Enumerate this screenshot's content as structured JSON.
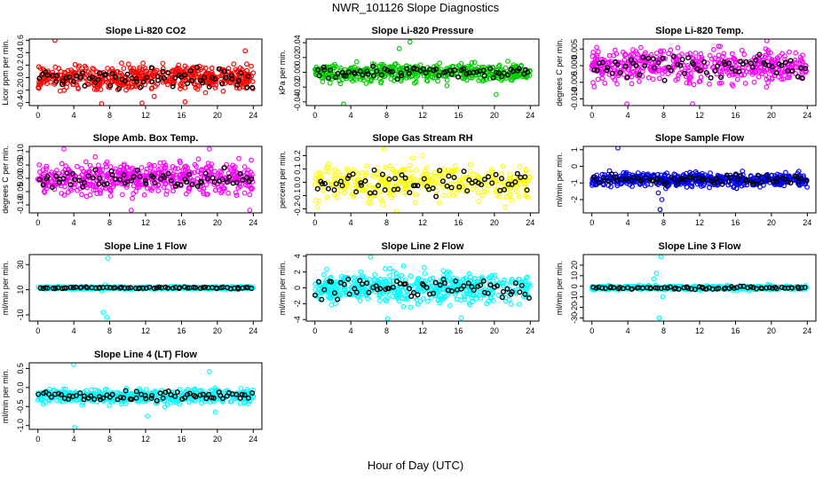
{
  "title": "NWR_101126  Slope Diagnostics",
  "xlabel": "Hour of Day (UTC)",
  "colors": {
    "black": "#000000"
  },
  "chart_data": [
    {
      "type": "scatter",
      "title": "Slope Li-820 CO2",
      "ylabel": "Licor ppm per min.",
      "color": "#ff0000",
      "xlim": [
        0,
        24
      ],
      "ylim": [
        -0.45,
        0.62
      ],
      "xticks": [
        0,
        4,
        8,
        12,
        16,
        20,
        24
      ],
      "yticks": [
        -0.4,
        -0.2,
        0.0,
        0.2,
        0.4,
        0.6
      ],
      "ytick_labels": [
        "-0.4",
        "-0.2",
        "0.0",
        "0.2",
        "0.4",
        "0.6"
      ],
      "spread": 0.14,
      "n": 520,
      "black_n": 70,
      "outliers": [
        [
          1.9,
          0.6
        ],
        [
          7.1,
          -0.42
        ],
        [
          11.6,
          -0.41
        ],
        [
          16.4,
          -0.39
        ],
        [
          23.1,
          0.43
        ]
      ]
    },
    {
      "type": "scatter",
      "title": "Slope Li-820 Pressure",
      "ylabel": "kPa per min.",
      "color": "#00cc00",
      "xlim": [
        0,
        24
      ],
      "ylim": [
        -0.045,
        0.045
      ],
      "xticks": [
        0,
        4,
        8,
        12,
        16,
        20,
        24
      ],
      "yticks": [
        -0.04,
        -0.02,
        0.0,
        0.02,
        0.04
      ],
      "ytick_labels": [
        "-0.04",
        "-0.02",
        "0.00",
        "0.02",
        "0.04"
      ],
      "spread": 0.008,
      "n": 520,
      "black_n": 70,
      "outliers": [
        [
          3.2,
          -0.043
        ],
        [
          10.6,
          0.041
        ],
        [
          9.4,
          0.032
        ],
        [
          20.2,
          -0.03
        ]
      ]
    },
    {
      "type": "scatter",
      "title": "Slope Li-820 Temp.",
      "ylabel": "degrees C per min.",
      "color": "#ff00ff",
      "xlim": [
        0,
        24
      ],
      "ylim": [
        -0.012,
        0.008
      ],
      "xticks": [
        0,
        4,
        8,
        12,
        16,
        20,
        24
      ],
      "yticks": [
        -0.01,
        -0.005,
        0.0,
        0.005
      ],
      "ytick_labels": [
        "-0.010",
        "-0.005",
        "0.000",
        "0.005"
      ],
      "spread": 0.0035,
      "n": 480,
      "black_n": 70,
      "outliers": [
        [
          3.9,
          -0.0115
        ],
        [
          11.2,
          -0.0115
        ],
        [
          19.5,
          0.0075
        ]
      ]
    },
    {
      "type": "scatter",
      "title": "Slope Amb. Box Temp.",
      "ylabel": "degrees C per min.",
      "color": "#ff00ff",
      "xlim": [
        0,
        24
      ],
      "ylim": [
        -0.13,
        0.12
      ],
      "xticks": [
        0,
        4,
        8,
        12,
        16,
        20,
        24
      ],
      "yticks": [
        -0.1,
        -0.05,
        0.0,
        0.05,
        0.1
      ],
      "ytick_labels": [
        "-0.10",
        "-0.05",
        "0.00",
        "0.05",
        "0.10"
      ],
      "spread": 0.04,
      "n": 520,
      "black_n": 70,
      "outliers": [
        [
          2.9,
          0.11
        ],
        [
          10.4,
          -0.12
        ],
        [
          19.1,
          0.11
        ],
        [
          23.6,
          -0.12
        ]
      ]
    },
    {
      "type": "scatter",
      "title": "Slope Gas Stream RH",
      "ylabel": "percent per min.",
      "color": "#ffff00",
      "xlim": [
        0,
        24
      ],
      "ylim": [
        -0.23,
        0.27
      ],
      "xticks": [
        0,
        4,
        8,
        12,
        16,
        20,
        24
      ],
      "yticks": [
        -0.2,
        -0.1,
        0.0,
        0.1,
        0.2
      ],
      "ytick_labels": [
        "-0.2",
        "-0.1",
        "0.0",
        "0.1",
        "0.2"
      ],
      "spread": 0.09,
      "n": 360,
      "black_n": 65,
      "outliers": [
        [
          7.7,
          0.25
        ],
        [
          9.1,
          -0.22
        ]
      ]
    },
    {
      "type": "scatter",
      "title": "Slope Sample Flow",
      "ylabel": "ml/min per min.",
      "color": "#0000ff",
      "xlim": [
        0,
        24
      ],
      "ylim": [
        -2.8,
        1.2
      ],
      "xticks": [
        0,
        4,
        8,
        12,
        16,
        20,
        24
      ],
      "yticks": [
        -2,
        -1,
        0,
        1
      ],
      "ytick_labels": [
        "-2",
        "-1",
        "0",
        "1"
      ],
      "spread": 0.28,
      "n": 560,
      "black_n": 70,
      "outliers": [
        [
          7.6,
          -2.6
        ],
        [
          7.4,
          -1.6
        ],
        [
          7.8,
          -2.0
        ],
        [
          2.9,
          1.1
        ],
        [
          12.2,
          -1.2
        ]
      ]
    },
    {
      "type": "scatter",
      "title": "Slope Line 1 Flow",
      "ylabel": "ml/min per min.",
      "color": "#00ffff",
      "xlim": [
        0,
        24
      ],
      "ylim": [
        -15,
        38
      ],
      "xticks": [
        0,
        4,
        8,
        12,
        16,
        20,
        24
      ],
      "yticks": [
        -10,
        10,
        30
      ],
      "ytick_labels": [
        "-10",
        "10",
        "30"
      ],
      "spread": 0.7,
      "n": 480,
      "black_n": 70,
      "outliers": [
        [
          7.8,
          35
        ],
        [
          7.5,
          14
        ],
        [
          7.1,
          9
        ],
        [
          7.3,
          -8
        ],
        [
          7.7,
          -12
        ]
      ]
    },
    {
      "type": "scatter",
      "title": "Slope Line 2 Flow",
      "ylabel": "ml/min per min.",
      "color": "#00ffff",
      "xlim": [
        0,
        24
      ],
      "ylim": [
        -4.2,
        4.2
      ],
      "xticks": [
        0,
        4,
        8,
        12,
        16,
        20,
        24
      ],
      "yticks": [
        -4,
        -2,
        0,
        2,
        4
      ],
      "ytick_labels": [
        "-4",
        "-2",
        "0",
        "2",
        "4"
      ],
      "spread": 1.3,
      "n": 520,
      "black_n": 70,
      "outliers": [
        [
          6.2,
          3.9
        ],
        [
          8.1,
          -3.9
        ],
        [
          16.3,
          -3.8
        ]
      ]
    },
    {
      "type": "scatter",
      "title": "Slope Line 3 Flow",
      "ylabel": "ml/min per min.",
      "color": "#00ffff",
      "xlim": [
        0,
        24
      ],
      "ylim": [
        -33,
        30
      ],
      "xticks": [
        0,
        4,
        8,
        12,
        16,
        20,
        24
      ],
      "yticks": [
        -30,
        -20,
        -10,
        0,
        10,
        20
      ],
      "ytick_labels": [
        "-30",
        "-20",
        "-10",
        "0",
        "10",
        "20"
      ],
      "spread": 1.3,
      "n": 480,
      "black_n": 70,
      "outliers": [
        [
          7.7,
          28
        ],
        [
          7.5,
          -30
        ],
        [
          7.2,
          12
        ],
        [
          7.9,
          -10
        ],
        [
          6.9,
          7
        ]
      ]
    },
    {
      "type": "scatter",
      "title": "Slope Line 4 (LT) Flow",
      "ylabel": "ml/min per min.",
      "color": "#00ffff",
      "xlim": [
        0,
        24
      ],
      "ylim": [
        -1.1,
        0.65
      ],
      "xticks": [
        0,
        4,
        8,
        12,
        16,
        20,
        24
      ],
      "yticks": [
        -1.0,
        -0.5,
        0.0,
        0.5
      ],
      "ytick_labels": [
        "-1.0",
        "-0.5",
        "0.0",
        "0.5"
      ],
      "spread": 0.13,
      "n": 520,
      "black_n": 70,
      "outliers": [
        [
          4.1,
          -1.05
        ],
        [
          4.0,
          0.6
        ],
        [
          12.2,
          -0.75
        ],
        [
          19.8,
          -0.65
        ],
        [
          19.1,
          0.42
        ]
      ]
    }
  ]
}
